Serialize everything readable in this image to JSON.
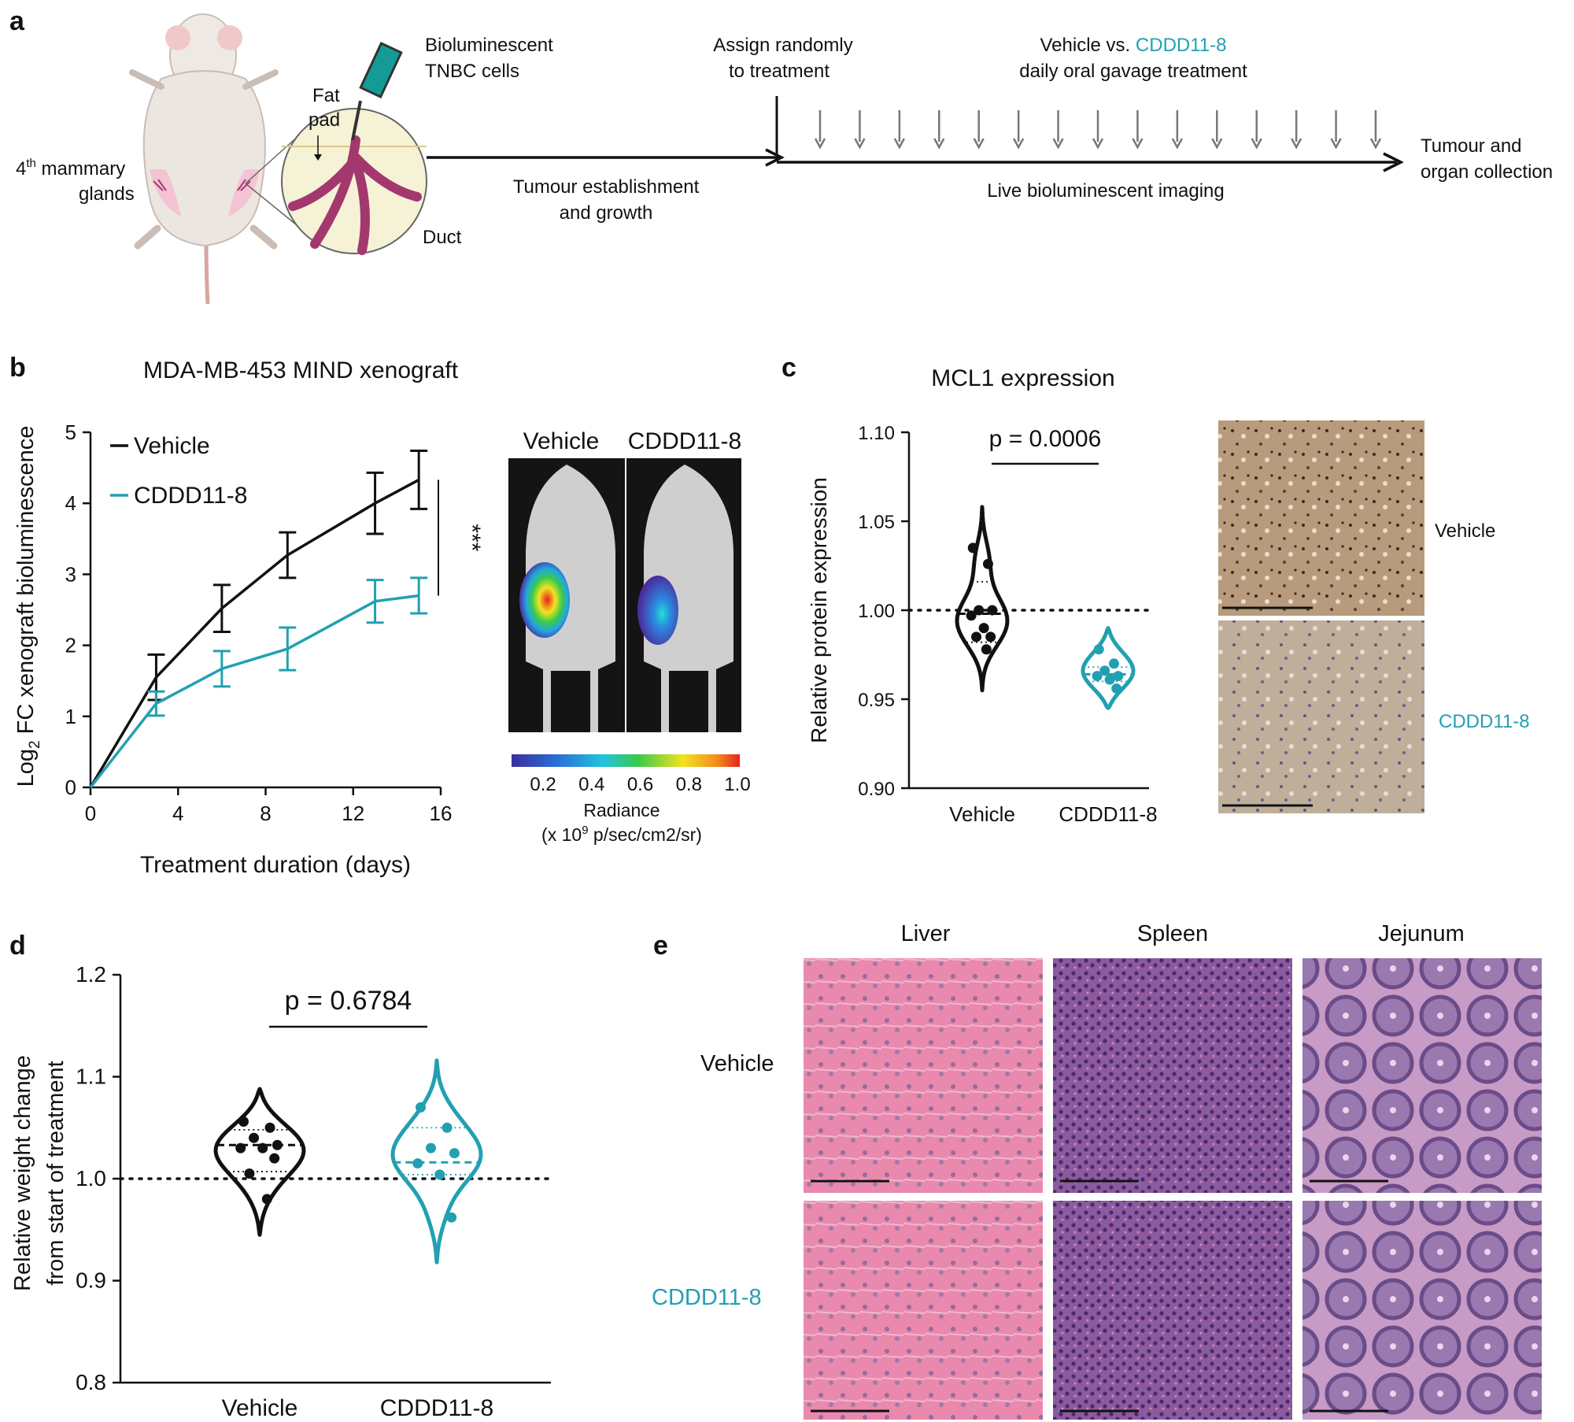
{
  "colors": {
    "vehicle": "#111111",
    "treated": "#22a0b1"
  },
  "panel_a": {
    "letter": "a",
    "gland_label_sup": "th",
    "gland_label_num": "4",
    "gland_label_1": " mammary",
    "gland_label_2": "glands",
    "fat_pad_1": "Fat",
    "fat_pad_2": "pad",
    "duct": "Duct",
    "cells_1": "Bioluminescent",
    "cells_2": "TNBC cells",
    "establish_1": "Tumour establishment",
    "establish_2": "and growth",
    "assign_1": "Assign randomly",
    "assign_2": "to treatment",
    "treat_vehicle": "Vehicle vs. ",
    "treat_drug": "CDDD11-8",
    "treat_2": "daily oral gavage treatment",
    "imaging": "Live bioluminescent imaging",
    "collection_1": "Tumour and",
    "collection_2": "organ collection",
    "dose_arrows": 15
  },
  "panel_b": {
    "letter": "b",
    "radiance_label": "Radiance",
    "radiance_unit_pre": "(x 10",
    "radiance_unit_sup": "9",
    "radiance_unit_post": " p/sec/cm2/sr)",
    "colorbar_ticks": [
      "0.2",
      "0.4",
      "0.6",
      "0.8",
      "1.0"
    ],
    "image_labels": [
      "Vehicle",
      "CDDD11-8"
    ],
    "significance": "***",
    "ylabel_pre": "Log",
    "ylabel_sub": "2",
    "ylabel_post": " FC xenograft bioluminescence"
  },
  "panel_c": {
    "letter": "c",
    "ihc_labels": [
      "Vehicle",
      "CDDD11-8"
    ]
  },
  "panel_d": {
    "letter": "d"
  },
  "panel_e": {
    "letter": "e",
    "columns": [
      "Liver",
      "Spleen",
      "Jejunum"
    ],
    "rows": [
      "Vehicle",
      "CDDD11-8"
    ]
  },
  "chart_data": [
    {
      "panel": "b",
      "type": "line",
      "title": "MDA-MB-453 MIND xenograft",
      "xlabel": "Treatment duration (days)",
      "ylabel": "Log2 FC xenograft bioluminescence",
      "xlim": [
        0,
        16
      ],
      "ylim": [
        0,
        5
      ],
      "xticks": [
        "0",
        "4",
        "8",
        "12",
        "16"
      ],
      "yticks": [
        "0",
        "1",
        "2",
        "3",
        "4",
        "5"
      ],
      "legend": "top-left",
      "series": [
        {
          "name": "Vehicle",
          "x": [
            0,
            3,
            6,
            9,
            13,
            15
          ],
          "y": [
            0,
            1.55,
            2.52,
            3.27,
            4.0,
            4.33
          ],
          "err": [
            0,
            0.32,
            0.33,
            0.32,
            0.43,
            0.41
          ]
        },
        {
          "name": "CDDD11-8",
          "x": [
            0,
            3,
            6,
            9,
            13,
            15
          ],
          "y": [
            0,
            1.18,
            1.67,
            1.95,
            2.62,
            2.7
          ],
          "err": [
            0,
            0.17,
            0.25,
            0.3,
            0.3,
            0.25
          ]
        }
      ]
    },
    {
      "panel": "c",
      "type": "violin",
      "title": "MCL1 expression",
      "ylabel": "Relative protein expression",
      "ylim": [
        0.9,
        1.1
      ],
      "yticks": [
        "0.90",
        "0.95",
        "1.00",
        "1.05",
        "1.10"
      ],
      "categories": [
        "Vehicle",
        "CDDD11-8"
      ],
      "reference_line": 1.0,
      "annotation": "p = 0.0006",
      "series": [
        {
          "name": "Vehicle",
          "points": [
            1.035,
            1.026,
            1.0,
            1.0,
            0.997,
            0.99,
            0.985,
            0.985,
            0.978
          ],
          "median": 0.998,
          "q1": 0.982,
          "q3": 1.016,
          "min": 0.955,
          "max": 1.058
        },
        {
          "name": "CDDD11-8",
          "points": [
            0.978,
            0.97,
            0.966,
            0.963,
            0.963,
            0.961,
            0.956
          ],
          "median": 0.964,
          "q1": 0.96,
          "q3": 0.968,
          "min": 0.945,
          "max": 0.99
        }
      ]
    },
    {
      "panel": "d",
      "type": "violin",
      "ylabel": "Relative weight change from start of treatment",
      "ylim": [
        0.8,
        1.2
      ],
      "yticks": [
        "0.8",
        "0.9",
        "1.0",
        "1.1",
        "1.2"
      ],
      "categories": [
        "Vehicle",
        "CDDD11-8"
      ],
      "reference_line": 1.0,
      "annotation": "p = 0.6784",
      "series": [
        {
          "name": "Vehicle",
          "points": [
            1.056,
            1.05,
            1.04,
            1.033,
            1.03,
            1.03,
            1.02,
            1.005,
            0.98
          ],
          "median": 1.033,
          "q1": 1.007,
          "q3": 1.048,
          "min": 0.945,
          "max": 1.088
        },
        {
          "name": "CDDD11-8",
          "points": [
            1.07,
            1.05,
            1.03,
            1.025,
            1.015,
            1.004,
            0.962
          ],
          "median": 1.016,
          "q1": 1.004,
          "q3": 1.05,
          "min": 0.918,
          "max": 1.116
        }
      ]
    }
  ]
}
